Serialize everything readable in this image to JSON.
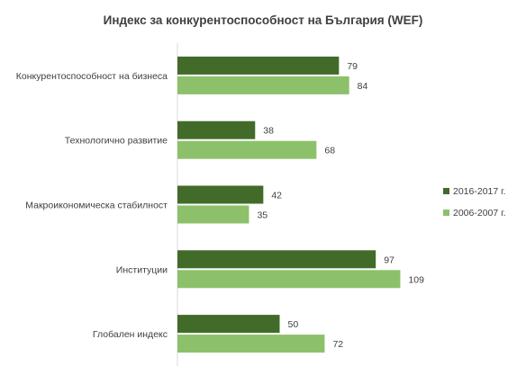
{
  "chart_data": {
    "type": "bar",
    "orientation": "horizontal",
    "title": "Индекс за конкурентоспособност на България (WEF)",
    "categories": [
      "Конкурентоспособност на бизнеса",
      "Технологично развитие",
      "Макроикономическа стабилност",
      "Институции",
      "Глобален индекс"
    ],
    "series": [
      {
        "name": "2016-2017 г.",
        "color": "#426b2a",
        "values": [
          79,
          38,
          42,
          97,
          50
        ]
      },
      {
        "name": "2006-2007 г.",
        "color": "#8dc06b",
        "values": [
          84,
          68,
          35,
          109,
          72
        ]
      }
    ],
    "xlim": [
      0,
      115
    ],
    "grid": false,
    "data_labels": true,
    "legend_position": "right"
  }
}
